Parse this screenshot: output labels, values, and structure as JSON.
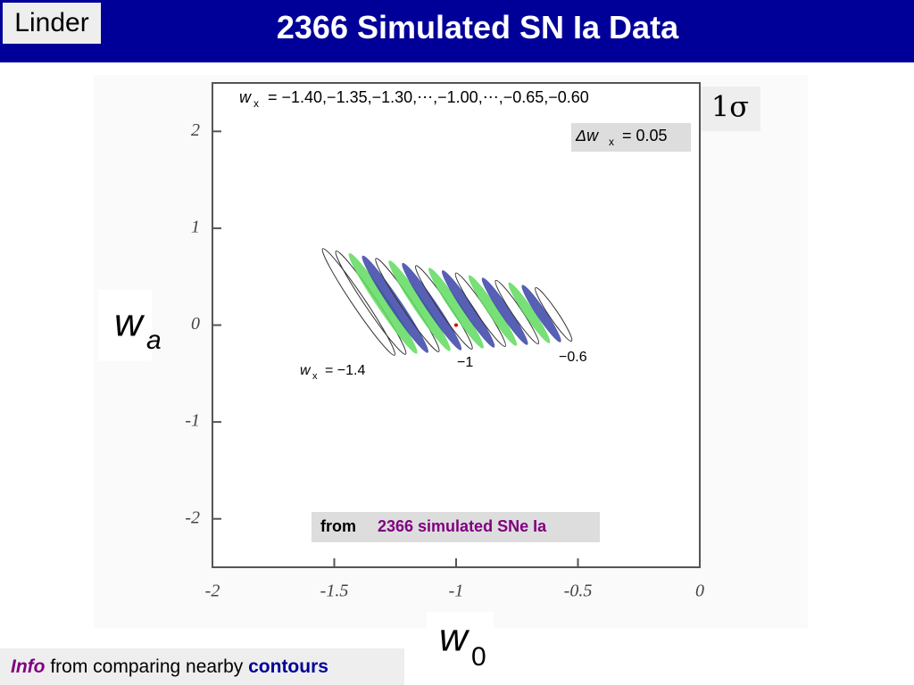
{
  "header": {
    "author": "Linder",
    "title": "2366 Simulated SN Ia Data"
  },
  "footer": {
    "lead": "Info",
    "text": "from comparing nearby",
    "emphasis": "contours"
  },
  "sigma_box": "1σ",
  "chart_data": {
    "type": "contour",
    "x_label": {
      "main": "w",
      "sub": "0"
    },
    "y_label": {
      "main": "w",
      "sub": "a"
    },
    "xlim": [
      -2,
      0
    ],
    "ylim": [
      -2.5,
      2.5
    ],
    "xticks": [
      -2,
      -1.5,
      -1,
      -0.5,
      0
    ],
    "yticks": [
      -2,
      -1,
      0,
      1,
      2
    ],
    "contours": {
      "values": [
        -1.4,
        -1.35,
        -1.3,
        -1.25,
        -1.2,
        -1.15,
        -1.1,
        -1.05,
        -1.0,
        -0.95,
        -0.9,
        -0.85,
        -0.8,
        -0.75,
        -0.7,
        -0.65,
        -0.6
      ],
      "colors": [
        "none",
        "none",
        "#5fdc5f",
        "#3b44a8",
        "none",
        "#5fdc5f",
        "#3b44a8",
        "none",
        "#5fdc5f",
        "#3b44a8",
        "none",
        "#5fdc5f",
        "#3b44a8",
        "none",
        "#5fdc5f",
        "#3b44a8",
        "none"
      ]
    },
    "annotations": {
      "list": {
        "main": "w",
        "sub": "x",
        "text": "= −1.40,−1.35,−1.30,⋯,−1.00,⋯,−0.65,−0.60"
      },
      "step": {
        "main": "Δw",
        "sub": "x",
        "text": "= 0.05"
      },
      "left": {
        "main": "w",
        "sub": "x",
        "text": "= −1.4"
      },
      "mid": "−1",
      "right": "−0.6",
      "source": {
        "prefix": "from",
        "text": "2366 simulated SNe Ia"
      }
    }
  }
}
